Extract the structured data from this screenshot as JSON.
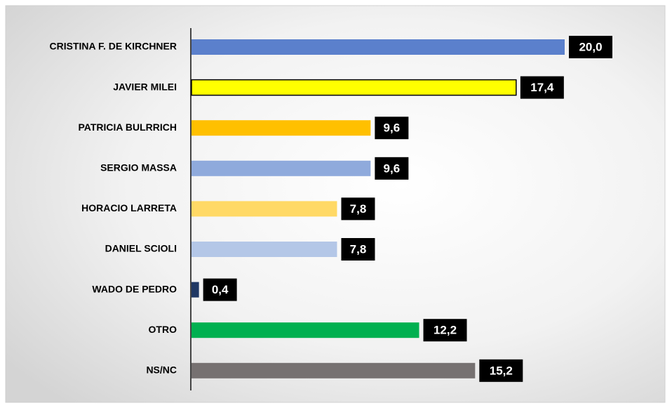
{
  "chart_data": {
    "type": "bar",
    "orientation": "horizontal",
    "categories": [
      "CRISTINA F. DE KIRCHNER",
      "JAVIER MILEI",
      "PATRICIA BULRRICH",
      "SERGIO MASSA",
      "HORACIO LARRETA",
      "DANIEL SCIOLI",
      "WADO DE PEDRO",
      "OTRO",
      "NS/NC"
    ],
    "values": [
      20.0,
      17.4,
      9.6,
      9.6,
      7.8,
      7.8,
      0.4,
      12.2,
      15.2
    ],
    "value_labels": [
      "20,0",
      "17,4",
      "9,6",
      "9,6",
      "7,8",
      "7,8",
      "0,4",
      "12,2",
      "15,2"
    ],
    "colors": [
      "#5b80cc",
      "#ffff00",
      "#ffc000",
      "#8faadc",
      "#ffd966",
      "#b4c7e7",
      "#203864",
      "#00b050",
      "#767171"
    ]
  }
}
